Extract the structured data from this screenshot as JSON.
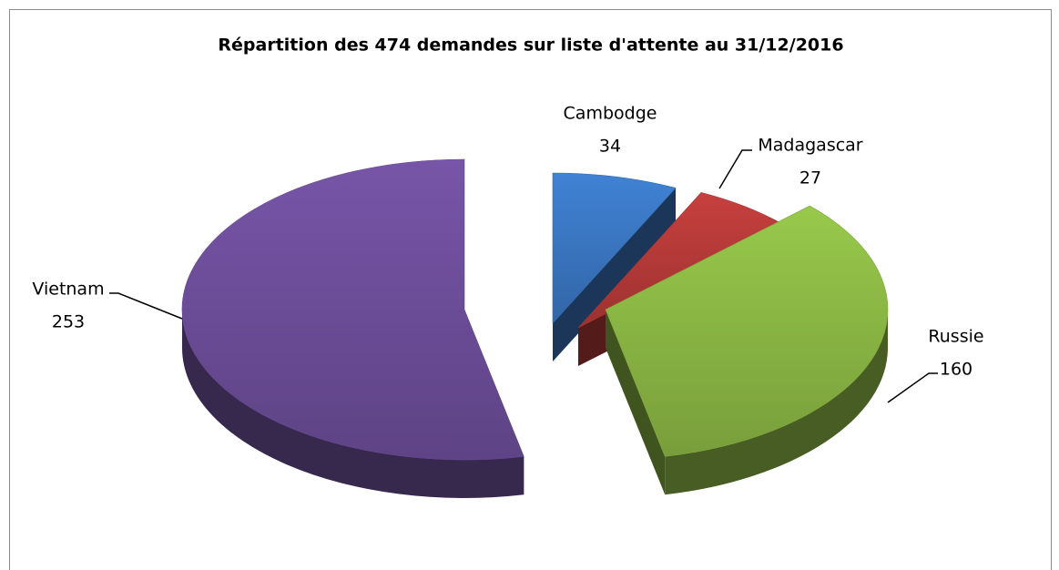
{
  "chart_data": {
    "type": "pie",
    "title": "Répartition des 474 demandes sur liste d'attente au 31/12/2016",
    "categories": [
      "Cambodge",
      "Madagascar",
      "Russie",
      "Vietnam"
    ],
    "values": [
      34,
      27,
      160,
      253
    ],
    "colors": [
      "#3b78c4",
      "#b83b39",
      "#8dba45",
      "#6e4f9c"
    ]
  }
}
